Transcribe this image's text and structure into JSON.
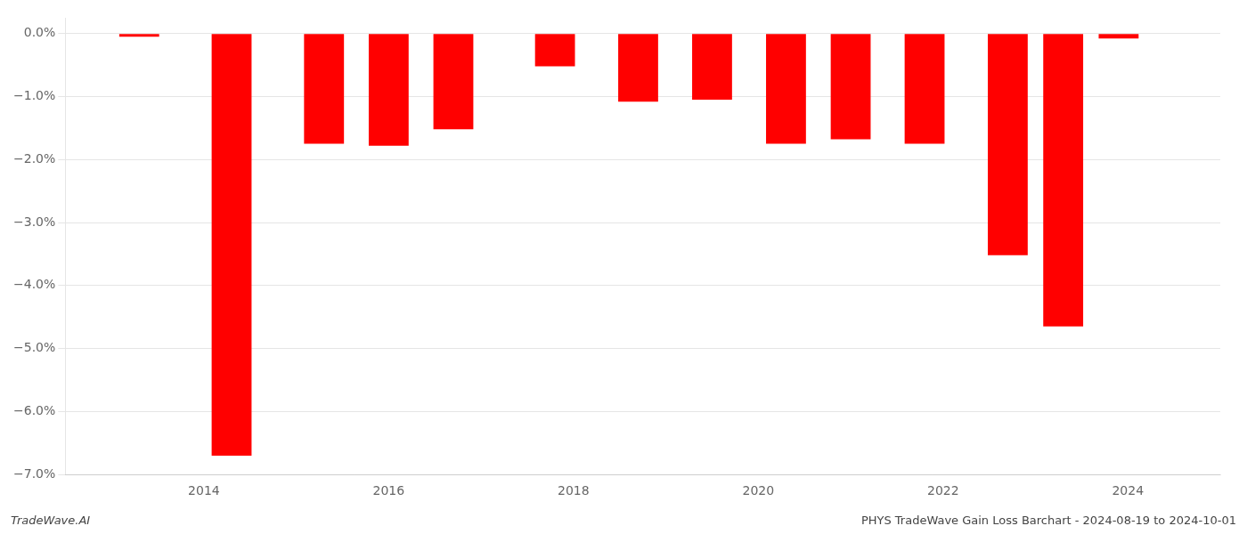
{
  "chart_data": {
    "type": "bar",
    "x": [
      2013.3,
      2014.3,
      2015.3,
      2016.0,
      2016.7,
      2017.8,
      2018.7,
      2019.5,
      2020.3,
      2021.0,
      2021.8,
      2022.7,
      2023.3,
      2023.9
    ],
    "values": [
      -0.05,
      -6.7,
      -1.75,
      -1.78,
      -1.52,
      -0.52,
      -1.08,
      -1.05,
      -1.75,
      -1.68,
      -1.75,
      -3.52,
      -4.65,
      -0.08
    ],
    "color": "#ff0000",
    "xlim": [
      2012.5,
      2025.0
    ],
    "xticks": [
      2014,
      2016,
      2018,
      2020,
      2022,
      2024
    ],
    "ylim": [
      -7.0,
      0.25
    ],
    "yticks": [
      {
        "value": 0.0,
        "label": "0.0%"
      },
      {
        "value": -1.0,
        "label": "−1.0%"
      },
      {
        "value": -2.0,
        "label": "−2.0%"
      },
      {
        "value": -3.0,
        "label": "−3.0%"
      },
      {
        "value": -4.0,
        "label": "−4.0%"
      },
      {
        "value": -5.0,
        "label": "−5.0%"
      },
      {
        "value": -6.0,
        "label": "−6.0%"
      },
      {
        "value": -7.0,
        "label": "−7.0%"
      }
    ],
    "grid": true,
    "annotations": [
      "TradeWave.AI",
      "PHYS TradeWave Gain Loss Barchart - 2024-08-19 to 2024-10-01"
    ]
  }
}
